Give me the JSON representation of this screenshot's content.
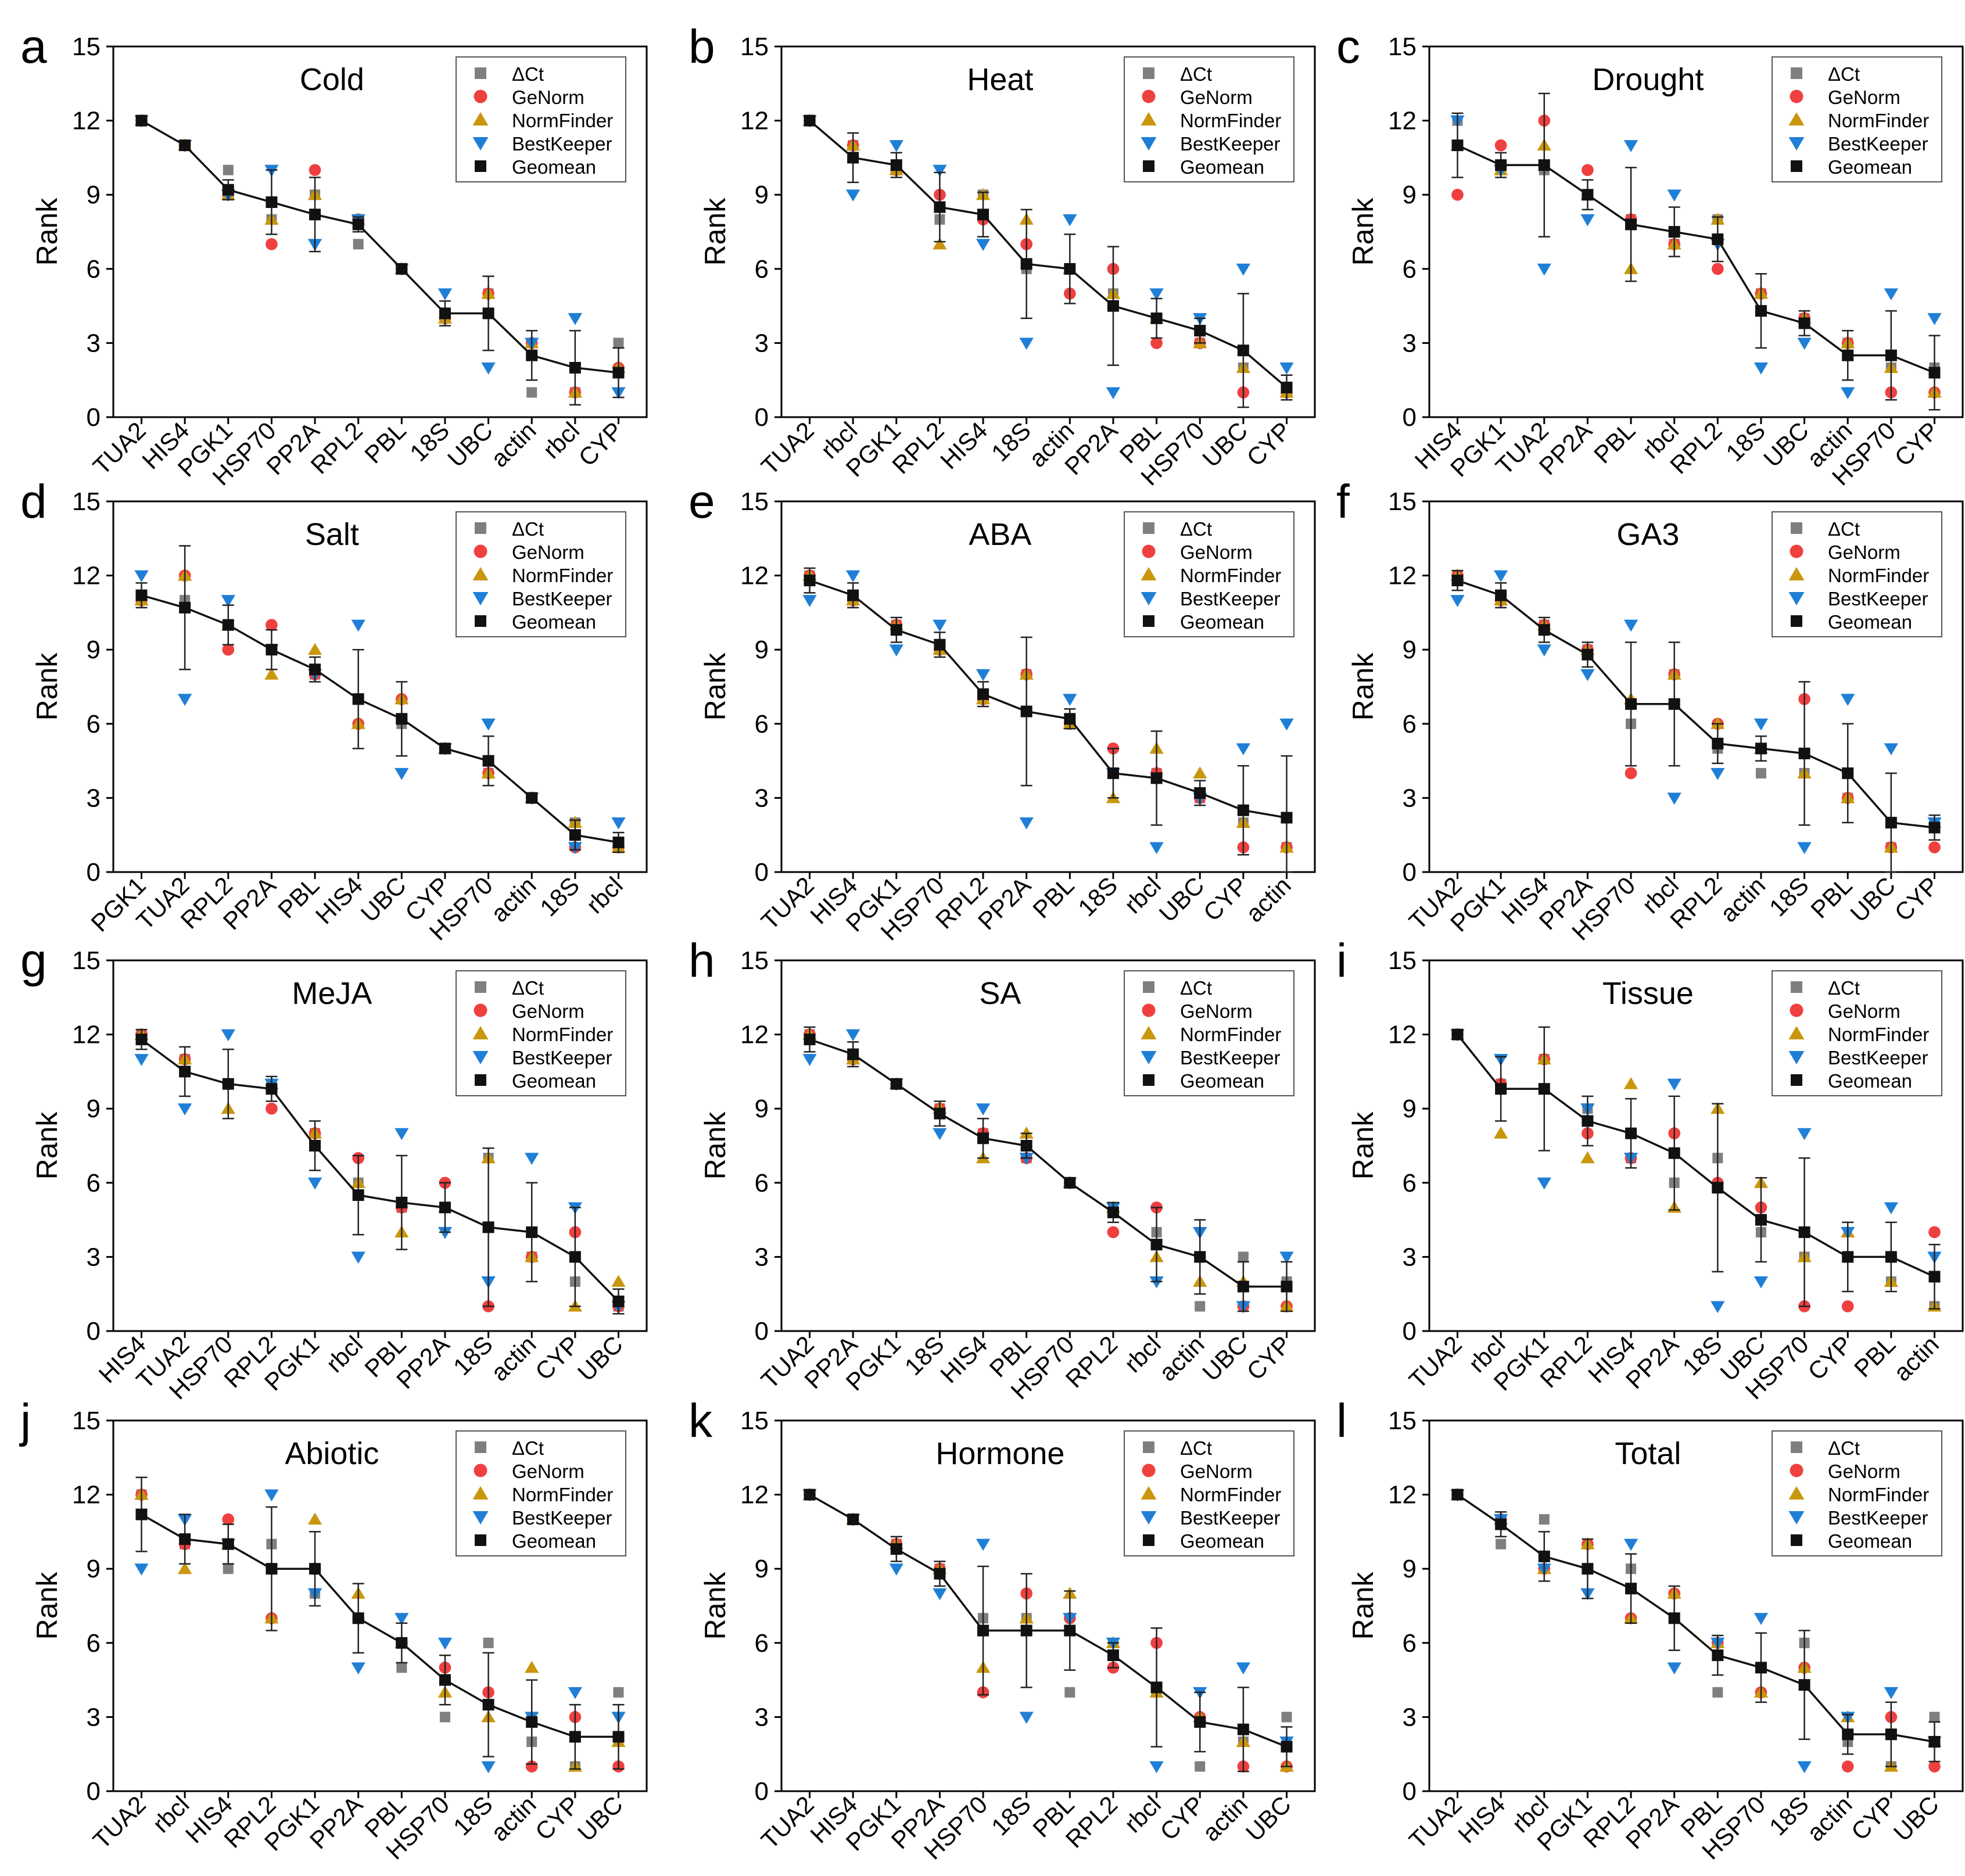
{
  "figure": {
    "legend_entries": [
      "ΔCt",
      "GeNorm",
      "NormFinder",
      "BestKeeper",
      "Geomean"
    ],
    "ylabel": "Rank",
    "yticks": [
      "0",
      "3",
      "6",
      "9",
      "12",
      "15"
    ],
    "colors": {
      "deltact": "#7f7f7f",
      "genorm": "#ef4040",
      "normfinder": "#c9960c",
      "bestkeeper": "#1f7fd6",
      "geomean": "#111111"
    }
  },
  "chart_data": [
    {
      "type": "scatter",
      "letter": "a",
      "title": "Cold",
      "ylabel": "Rank",
      "ylim": [
        0,
        15
      ],
      "categories": [
        "TUA2",
        "HIS4",
        "PGK1",
        "HSP70",
        "PP2A",
        "RPL2",
        "PBL",
        "18S",
        "UBC",
        "actin",
        "rbcl",
        "CYP"
      ],
      "geomean": [
        12,
        11,
        9.2,
        8.7,
        8.2,
        7.8,
        6,
        4.2,
        4.2,
        2.5,
        2.0,
        1.8
      ],
      "error": [
        0,
        0,
        0.4,
        1.3,
        1.5,
        0.3,
        0,
        0.5,
        1.5,
        1.0,
        1.5,
        1.0
      ],
      "deltact": [
        12,
        11,
        10,
        8,
        9,
        7,
        6,
        4,
        5,
        1,
        1,
        3
      ],
      "genorm": [
        12,
        11,
        9,
        7,
        10,
        8,
        6,
        4,
        5,
        3,
        1,
        2
      ],
      "normfinder": [
        12,
        11,
        9,
        8,
        9,
        8,
        6,
        4,
        5,
        3,
        1,
        2
      ],
      "bestkeeper": [
        12,
        11,
        9,
        10,
        7,
        8,
        6,
        5,
        2,
        3,
        4,
        1
      ]
    },
    {
      "type": "scatter",
      "letter": "b",
      "title": "Heat",
      "ylabel": "Rank",
      "ylim": [
        0,
        15
      ],
      "categories": [
        "TUA2",
        "rbcl",
        "PGK1",
        "RPL2",
        "HIS4",
        "18S",
        "actin",
        "PP2A",
        "PBL",
        "HSP70",
        "UBC",
        "CYP"
      ],
      "geomean": [
        12,
        10.5,
        10.2,
        8.5,
        8.2,
        6.2,
        6.0,
        4.5,
        4.0,
        3.5,
        2.7,
        1.2
      ],
      "error": [
        0,
        1.0,
        0.5,
        1.4,
        0.9,
        2.2,
        1.4,
        2.4,
        0.8,
        0.5,
        2.3,
        0.5
      ],
      "deltact": [
        12,
        11,
        10,
        8,
        9,
        6,
        6,
        5,
        4,
        3,
        2,
        1
      ],
      "genorm": [
        12,
        11,
        10,
        9,
        8,
        7,
        5,
        6,
        3,
        3,
        1,
        1
      ],
      "normfinder": [
        12,
        11,
        10,
        7,
        9,
        8,
        6,
        5,
        4,
        3,
        2,
        1
      ],
      "bestkeeper": [
        12,
        9,
        11,
        10,
        7,
        3,
        8,
        1,
        5,
        4,
        6,
        2
      ]
    },
    {
      "type": "scatter",
      "letter": "c",
      "title": "Drought",
      "ylabel": "Rank",
      "ylim": [
        0,
        15
      ],
      "categories": [
        "HIS4",
        "PGK1",
        "TUA2",
        "PP2A",
        "PBL",
        "rbcl",
        "RPL2",
        "18S",
        "UBC",
        "actin",
        "HSP70",
        "CYP"
      ],
      "geomean": [
        11.0,
        10.2,
        10.2,
        9.0,
        7.8,
        7.5,
        7.2,
        4.3,
        3.8,
        2.5,
        2.5,
        1.8
      ],
      "error": [
        1.3,
        0.5,
        2.9,
        0.6,
        2.3,
        1.0,
        0.9,
        1.5,
        0.5,
        1.0,
        1.8,
        1.5
      ],
      "deltact": [
        12,
        10,
        10,
        9,
        8,
        7,
        8,
        5,
        4,
        3,
        2,
        2
      ],
      "genorm": [
        9,
        11,
        12,
        10,
        8,
        7,
        6,
        5,
        4,
        3,
        1,
        1
      ],
      "normfinder": [
        11,
        10,
        11,
        9,
        6,
        7,
        8,
        5,
        4,
        3,
        2,
        1
      ],
      "bestkeeper": [
        12,
        10,
        6,
        8,
        11,
        9,
        7,
        2,
        3,
        1,
        5,
        4
      ]
    },
    {
      "type": "scatter",
      "letter": "d",
      "title": "Salt",
      "ylabel": "Rank",
      "ylim": [
        0,
        15
      ],
      "categories": [
        "PGK1",
        "TUA2",
        "RPL2",
        "PP2A",
        "PBL",
        "HIS4",
        "UBC",
        "CYP",
        "HSP70",
        "actin",
        "18S",
        "rbcl"
      ],
      "geomean": [
        11.2,
        10.7,
        10.0,
        9.0,
        8.2,
        7.0,
        6.2,
        5.0,
        4.5,
        3.0,
        1.5,
        1.2
      ],
      "error": [
        0.5,
        2.5,
        0.8,
        0.8,
        0.5,
        2.0,
        1.5,
        0,
        1.0,
        0,
        0.6,
        0.4
      ],
      "deltact": [
        11,
        11,
        10,
        9,
        8,
        7,
        6,
        5,
        4,
        3,
        2,
        1
      ],
      "genorm": [
        11,
        12,
        9,
        10,
        8,
        6,
        7,
        5,
        4,
        3,
        1,
        1
      ],
      "normfinder": [
        11,
        12,
        10,
        8,
        9,
        6,
        7,
        5,
        4,
        3,
        2,
        1
      ],
      "bestkeeper": [
        12,
        7,
        11,
        9,
        8,
        10,
        4,
        5,
        6,
        3,
        1,
        2
      ]
    },
    {
      "type": "scatter",
      "letter": "e",
      "title": "ABA",
      "ylabel": "Rank",
      "ylim": [
        0,
        15
      ],
      "categories": [
        "TUA2",
        "HIS4",
        "PGK1",
        "HSP70",
        "RPL2",
        "PP2A",
        "PBL",
        "18S",
        "rbcl",
        "UBC",
        "CYP",
        "actin"
      ],
      "geomean": [
        11.8,
        11.2,
        9.8,
        9.2,
        7.2,
        6.5,
        6.2,
        4.0,
        3.8,
        3.2,
        2.5,
        2.2
      ],
      "error": [
        0.5,
        0.5,
        0.5,
        0.5,
        0.5,
        3.0,
        0.4,
        1.0,
        1.9,
        0.5,
        1.8,
        2.5
      ],
      "deltact": [
        12,
        11,
        10,
        9,
        7,
        8,
        6,
        4,
        4,
        3,
        2,
        1
      ],
      "genorm": [
        12,
        11,
        10,
        9,
        7,
        8,
        6,
        5,
        4,
        3,
        1,
        1
      ],
      "normfinder": [
        12,
        11,
        10,
        9,
        7,
        8,
        6,
        3,
        5,
        4,
        2,
        1
      ],
      "bestkeeper": [
        11,
        12,
        9,
        10,
        8,
        2,
        7,
        4,
        1,
        3,
        5,
        6
      ]
    },
    {
      "type": "scatter",
      "letter": "f",
      "title": "GA3",
      "ylabel": "Rank",
      "ylim": [
        0,
        15
      ],
      "categories": [
        "TUA2",
        "PGK1",
        "HIS4",
        "PP2A",
        "HSP70",
        "rbcl",
        "RPL2",
        "actin",
        "18S",
        "PBL",
        "UBC",
        "CYP"
      ],
      "geomean": [
        11.8,
        11.2,
        9.8,
        8.8,
        6.8,
        6.8,
        5.2,
        5.0,
        4.8,
        4.0,
        2.0,
        1.8
      ],
      "error": [
        0.4,
        0.5,
        0.5,
        0.5,
        2.5,
        2.5,
        0.8,
        0.5,
        2.9,
        2.0,
        2.0,
        0.5
      ],
      "deltact": [
        12,
        11,
        10,
        9,
        6,
        8,
        5,
        4,
        4,
        3,
        1,
        2
      ],
      "genorm": [
        12,
        11,
        10,
        9,
        4,
        8,
        6,
        5,
        7,
        3,
        1,
        1
      ],
      "normfinder": [
        12,
        11,
        10,
        9,
        7,
        8,
        6,
        5,
        4,
        3,
        1,
        2
      ],
      "bestkeeper": [
        11,
        12,
        9,
        8,
        10,
        3,
        4,
        6,
        1,
        7,
        5,
        2
      ]
    },
    {
      "type": "scatter",
      "letter": "g",
      "title": "MeJA",
      "ylabel": "Rank",
      "ylim": [
        0,
        15
      ],
      "categories": [
        "HIS4",
        "TUA2",
        "HSP70",
        "RPL2",
        "PGK1",
        "rbcl",
        "PBL",
        "PP2A",
        "18S",
        "actin",
        "CYP",
        "UBC"
      ],
      "geomean": [
        11.8,
        10.5,
        10.0,
        9.8,
        7.5,
        5.5,
        5.2,
        5.0,
        4.2,
        4.0,
        3.0,
        1.2
      ],
      "error": [
        0.4,
        1.0,
        1.4,
        0.5,
        1.0,
        1.6,
        1.9,
        1.0,
        3.2,
        2.0,
        2.0,
        0.5
      ],
      "deltact": [
        12,
        11,
        10,
        10,
        8,
        6,
        5,
        5,
        7,
        3,
        2,
        1
      ],
      "genorm": [
        12,
        11,
        10,
        9,
        8,
        7,
        5,
        6,
        1,
        3,
        4,
        1
      ],
      "normfinder": [
        12,
        11,
        9,
        10,
        8,
        6,
        4,
        5,
        7,
        3,
        1,
        2
      ],
      "bestkeeper": [
        11,
        9,
        12,
        10,
        6,
        3,
        8,
        4,
        2,
        7,
        5,
        1
      ]
    },
    {
      "type": "scatter",
      "letter": "h",
      "title": "SA",
      "ylabel": "Rank",
      "ylim": [
        0,
        15
      ],
      "categories": [
        "TUA2",
        "PP2A",
        "PGK1",
        "18S",
        "HIS4",
        "PBL",
        "HSP70",
        "RPL2",
        "rbcl",
        "actin",
        "UBC",
        "CYP"
      ],
      "geomean": [
        11.8,
        11.2,
        10.0,
        8.8,
        7.8,
        7.5,
        6.0,
        4.8,
        3.5,
        3.0,
        1.8,
        1.8
      ],
      "error": [
        0.5,
        0.5,
        0,
        0.5,
        0.8,
        0.5,
        0,
        0.4,
        1.5,
        1.5,
        1.0,
        1.0
      ],
      "deltact": [
        12,
        11,
        10,
        9,
        8,
        7,
        6,
        5,
        4,
        1,
        3,
        2
      ],
      "genorm": [
        12,
        11,
        10,
        9,
        8,
        7,
        6,
        4,
        5,
        3,
        1,
        1
      ],
      "normfinder": [
        12,
        11,
        10,
        9,
        7,
        8,
        6,
        5,
        3,
        2,
        2,
        1
      ],
      "bestkeeper": [
        11,
        12,
        10,
        8,
        9,
        7,
        6,
        5,
        2,
        4,
        1,
        3
      ]
    },
    {
      "type": "scatter",
      "letter": "i",
      "title": "Tissue",
      "ylabel": "Rank",
      "ylim": [
        0,
        15
      ],
      "categories": [
        "TUA2",
        "rbcl",
        "PGK1",
        "RPL2",
        "HIS4",
        "PP2A",
        "18S",
        "UBC",
        "HSP70",
        "CYP",
        "PBL",
        "actin"
      ],
      "geomean": [
        12,
        9.8,
        9.8,
        8.5,
        8.0,
        7.2,
        5.8,
        4.5,
        4.0,
        3.0,
        3.0,
        2.2
      ],
      "error": [
        0,
        1.3,
        2.5,
        1.0,
        1.4,
        2.3,
        3.4,
        1.7,
        3.0,
        1.4,
        1.4,
        1.3
      ],
      "deltact": [
        12,
        10,
        11,
        9,
        7,
        6,
        7,
        4,
        3,
        3,
        2,
        1
      ],
      "genorm": [
        12,
        10,
        11,
        8,
        7,
        8,
        6,
        5,
        1,
        1,
        3,
        4
      ],
      "normfinder": [
        12,
        8,
        11,
        7,
        10,
        5,
        9,
        6,
        3,
        4,
        2,
        1
      ],
      "bestkeeper": [
        12,
        11,
        6,
        9,
        7,
        10,
        1,
        2,
        8,
        4,
        5,
        3
      ]
    },
    {
      "type": "scatter",
      "letter": "j",
      "title": "Abiotic",
      "ylabel": "Rank",
      "ylim": [
        0,
        15
      ],
      "categories": [
        "TUA2",
        "rbcl",
        "HIS4",
        "RPL2",
        "PGK1",
        "PP2A",
        "PBL",
        "HSP70",
        "18S",
        "actin",
        "CYP",
        "UBC"
      ],
      "geomean": [
        11.2,
        10.2,
        10.0,
        9.0,
        9.0,
        7.0,
        6.0,
        4.5,
        3.5,
        2.8,
        2.2,
        2.2
      ],
      "error": [
        1.5,
        1.0,
        0.8,
        2.5,
        1.5,
        1.4,
        0.8,
        1.0,
        2.1,
        1.7,
        1.3,
        1.3
      ],
      "deltact": [
        12,
        10,
        9,
        10,
        8,
        7,
        5,
        3,
        6,
        2,
        1,
        4
      ],
      "genorm": [
        12,
        10,
        11,
        7,
        9,
        7,
        6,
        5,
        4,
        1,
        3,
        1
      ],
      "normfinder": [
        12,
        9,
        10,
        7,
        11,
        8,
        6,
        4,
        3,
        5,
        1,
        2
      ],
      "bestkeeper": [
        9,
        11,
        10,
        12,
        8,
        5,
        7,
        6,
        1,
        3,
        4,
        3
      ]
    },
    {
      "type": "scatter",
      "letter": "k",
      "title": "Hormone",
      "ylabel": "Rank",
      "ylim": [
        0,
        15
      ],
      "categories": [
        "TUA2",
        "HIS4",
        "PGK1",
        "PP2A",
        "HSP70",
        "18S",
        "PBL",
        "RPL2",
        "rbcl",
        "CYP",
        "actin",
        "UBC"
      ],
      "geomean": [
        12,
        11,
        9.8,
        8.8,
        6.5,
        6.5,
        6.5,
        5.5,
        4.2,
        2.8,
        2.5,
        1.8
      ],
      "error": [
        0,
        0,
        0.5,
        0.5,
        2.6,
        2.3,
        1.6,
        0.5,
        2.4,
        1.2,
        1.7,
        0.8
      ],
      "deltact": [
        12,
        11,
        10,
        9,
        7,
        7,
        4,
        6,
        4,
        1,
        2,
        3
      ],
      "genorm": [
        12,
        11,
        10,
        9,
        4,
        8,
        7,
        5,
        6,
        3,
        1,
        1
      ],
      "normfinder": [
        12,
        11,
        10,
        9,
        5,
        7,
        8,
        6,
        4,
        3,
        2,
        1
      ],
      "bestkeeper": [
        12,
        11,
        9,
        8,
        10,
        3,
        7,
        6,
        1,
        4,
        5,
        2
      ]
    },
    {
      "type": "scatter",
      "letter": "l",
      "title": "Total",
      "ylabel": "Rank",
      "ylim": [
        0,
        15
      ],
      "categories": [
        "TUA2",
        "HIS4",
        "rbcl",
        "PGK1",
        "RPL2",
        "PP2A",
        "PBL",
        "HSP70",
        "18S",
        "actin",
        "CYP",
        "UBC"
      ],
      "geomean": [
        12,
        10.8,
        9.5,
        9.0,
        8.2,
        7.0,
        5.5,
        5.0,
        4.3,
        2.3,
        2.3,
        2.0
      ],
      "error": [
        0,
        0.5,
        1.0,
        1.2,
        1.4,
        1.3,
        0.8,
        1.4,
        2.2,
        0.8,
        1.3,
        0.8
      ],
      "deltact": [
        12,
        10,
        11,
        9,
        9,
        7,
        4,
        5,
        6,
        2,
        1,
        3
      ],
      "genorm": [
        12,
        11,
        9,
        10,
        7,
        8,
        6,
        4,
        5,
        1,
        3,
        1
      ],
      "normfinder": [
        12,
        11,
        9,
        10,
        7,
        8,
        6,
        4,
        5,
        3,
        1,
        2
      ],
      "bestkeeper": [
        12,
        11,
        9,
        8,
        10,
        5,
        6,
        7,
        1,
        3,
        4,
        2
      ]
    }
  ]
}
